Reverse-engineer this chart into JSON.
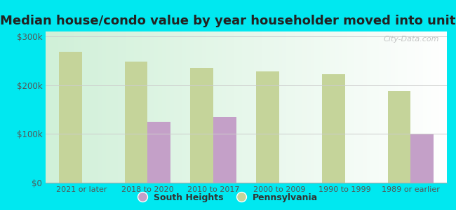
{
  "title": "Median house/condo value by year householder moved into unit",
  "categories": [
    "2021 or later",
    "2018 to 2020",
    "2010 to 2017",
    "2000 to 2009",
    "1990 to 1999",
    "1989 or earlier"
  ],
  "south_heights": [
    null,
    125000,
    135000,
    null,
    null,
    100000
  ],
  "pennsylvania": [
    268000,
    248000,
    235000,
    228000,
    222000,
    188000
  ],
  "south_heights_color": "#c4a0c8",
  "pennsylvania_color": "#c5d49a",
  "background_color_left": "#d0f0d8",
  "background_color_right": "#f0f8f0",
  "outer_background": "#00e8f0",
  "ylabel_ticks": [
    "$0",
    "$100k",
    "$200k",
    "$300k"
  ],
  "ytick_values": [
    0,
    100000,
    200000,
    300000
  ],
  "ylim": [
    0,
    310000
  ],
  "bar_width": 0.35,
  "title_fontsize": 13,
  "watermark": "City-Data.com"
}
